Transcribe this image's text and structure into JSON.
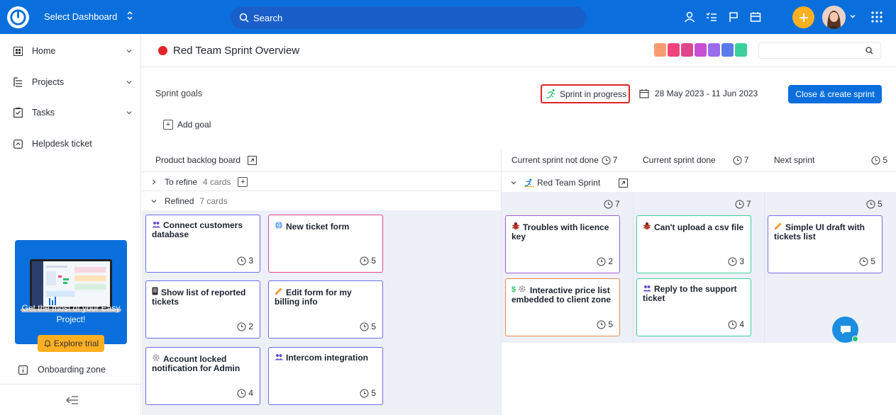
{
  "topbar": {
    "dashboard_select": "Select Dashboard",
    "search_placeholder": "Search"
  },
  "sidebar": {
    "items": [
      {
        "label": "Home"
      },
      {
        "label": "Projects"
      },
      {
        "label": "Tasks"
      },
      {
        "label": "Helpdesk ticket"
      }
    ],
    "promo_text": "Get the most of your Easy Project!",
    "explore_label": "Explore trial",
    "onboarding_label": "Onboarding zone"
  },
  "header": {
    "title": "Red Team Sprint Overview",
    "swatch_colors": [
      "#f79c6e",
      "#f0457a",
      "#e0468c",
      "#c74fd4",
      "#9b6bee",
      "#5b7be8",
      "#3ccf9a"
    ]
  },
  "sprint": {
    "goals_label": "Sprint goals",
    "status_label": "Sprint in progress",
    "date_range": "28 May 2023 - 11 Jun 2023",
    "close_button": "Close & create sprint",
    "add_goal": "Add goal"
  },
  "backlog": {
    "title": "Product backlog board",
    "groups": [
      {
        "name": "To refine",
        "count": "4 cards"
      },
      {
        "name": "Refined",
        "count": "7 cards"
      }
    ]
  },
  "columns": [
    {
      "title": "Current sprint not done",
      "count": "7"
    },
    {
      "title": "Current sprint done",
      "count": "7"
    },
    {
      "title": "Next sprint",
      "count": "5"
    }
  ],
  "sprint_group": {
    "name": "Red Team Sprint"
  },
  "cards": [
    {
      "title": "Connect customers database",
      "estimate": "3",
      "icon": "people-icon"
    },
    {
      "title": "New ticket form",
      "estimate": "5",
      "icon": "globe-icon"
    },
    {
      "title": "Show list of reported tickets",
      "estimate": "2",
      "icon": "phone-icon"
    },
    {
      "title": "Edit form for my billing info",
      "estimate": "5",
      "icon": "pencil-icon"
    },
    {
      "title": "Account locked notification for Admin",
      "estimate": "4",
      "icon": "gear-icon"
    },
    {
      "title": "Intercom integration",
      "estimate": "5",
      "icon": "people-icon"
    },
    {
      "title": "Troubles with licence key",
      "estimate": "2",
      "icon": "bug-icon"
    },
    {
      "title": "Interactive price list embedded to client zone",
      "estimate": "5",
      "icon": "dollar-gear-icon"
    },
    {
      "title": "Can't upload a csv file",
      "estimate": "3",
      "icon": "bug-icon"
    },
    {
      "title": "Reply to the support ticket",
      "estimate": "4",
      "icon": "people-icon"
    },
    {
      "title": "Simple UI draft with tickets list",
      "estimate": "5",
      "icon": "pencil-icon"
    }
  ]
}
